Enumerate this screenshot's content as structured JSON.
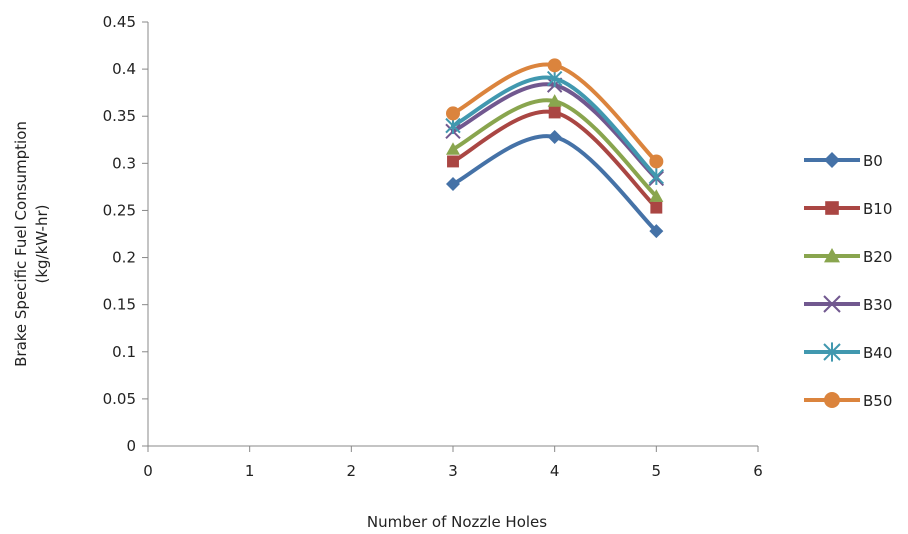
{
  "chart_data": {
    "type": "line",
    "title": "",
    "xlabel": "Number of Nozzle Holes",
    "ylabel_lines": [
      "Brake Specific Fuel Consumption",
      "(kg/kW-hr)"
    ],
    "xlim": [
      0,
      6
    ],
    "ylim": [
      0,
      0.45
    ],
    "x_ticks": [
      0,
      1,
      2,
      3,
      4,
      5,
      6
    ],
    "y_ticks": [
      0,
      0.05,
      0.1,
      0.15,
      0.2,
      0.25,
      0.3,
      0.35,
      0.4,
      0.45
    ],
    "x_tick_labels": [
      "0",
      "1",
      "2",
      "3",
      "4",
      "5",
      "6"
    ],
    "y_tick_labels": [
      "0",
      "0.05",
      "0.1",
      "0.15",
      "0.2",
      "0.25",
      "0.3",
      "0.35",
      "0.4",
      "0.45"
    ],
    "grid": false,
    "legend_position": "right",
    "x": [
      3,
      4,
      5
    ],
    "series": [
      {
        "name": "B0",
        "values": [
          0.278,
          0.328,
          0.228
        ],
        "color": "#4572A7",
        "marker": "diamond"
      },
      {
        "name": "B10",
        "values": [
          0.302,
          0.354,
          0.253
        ],
        "color": "#AA4643",
        "marker": "square"
      },
      {
        "name": "B20",
        "values": [
          0.315,
          0.366,
          0.265
        ],
        "color": "#89A54E",
        "marker": "triangle"
      },
      {
        "name": "B30",
        "values": [
          0.334,
          0.383,
          0.284
        ],
        "color": "#71588F",
        "marker": "x"
      },
      {
        "name": "B40",
        "values": [
          0.34,
          0.39,
          0.286
        ],
        "color": "#4198AF",
        "marker": "star"
      },
      {
        "name": "B50",
        "values": [
          0.353,
          0.404,
          0.302
        ],
        "color": "#DB843D",
        "marker": "circle"
      }
    ]
  }
}
